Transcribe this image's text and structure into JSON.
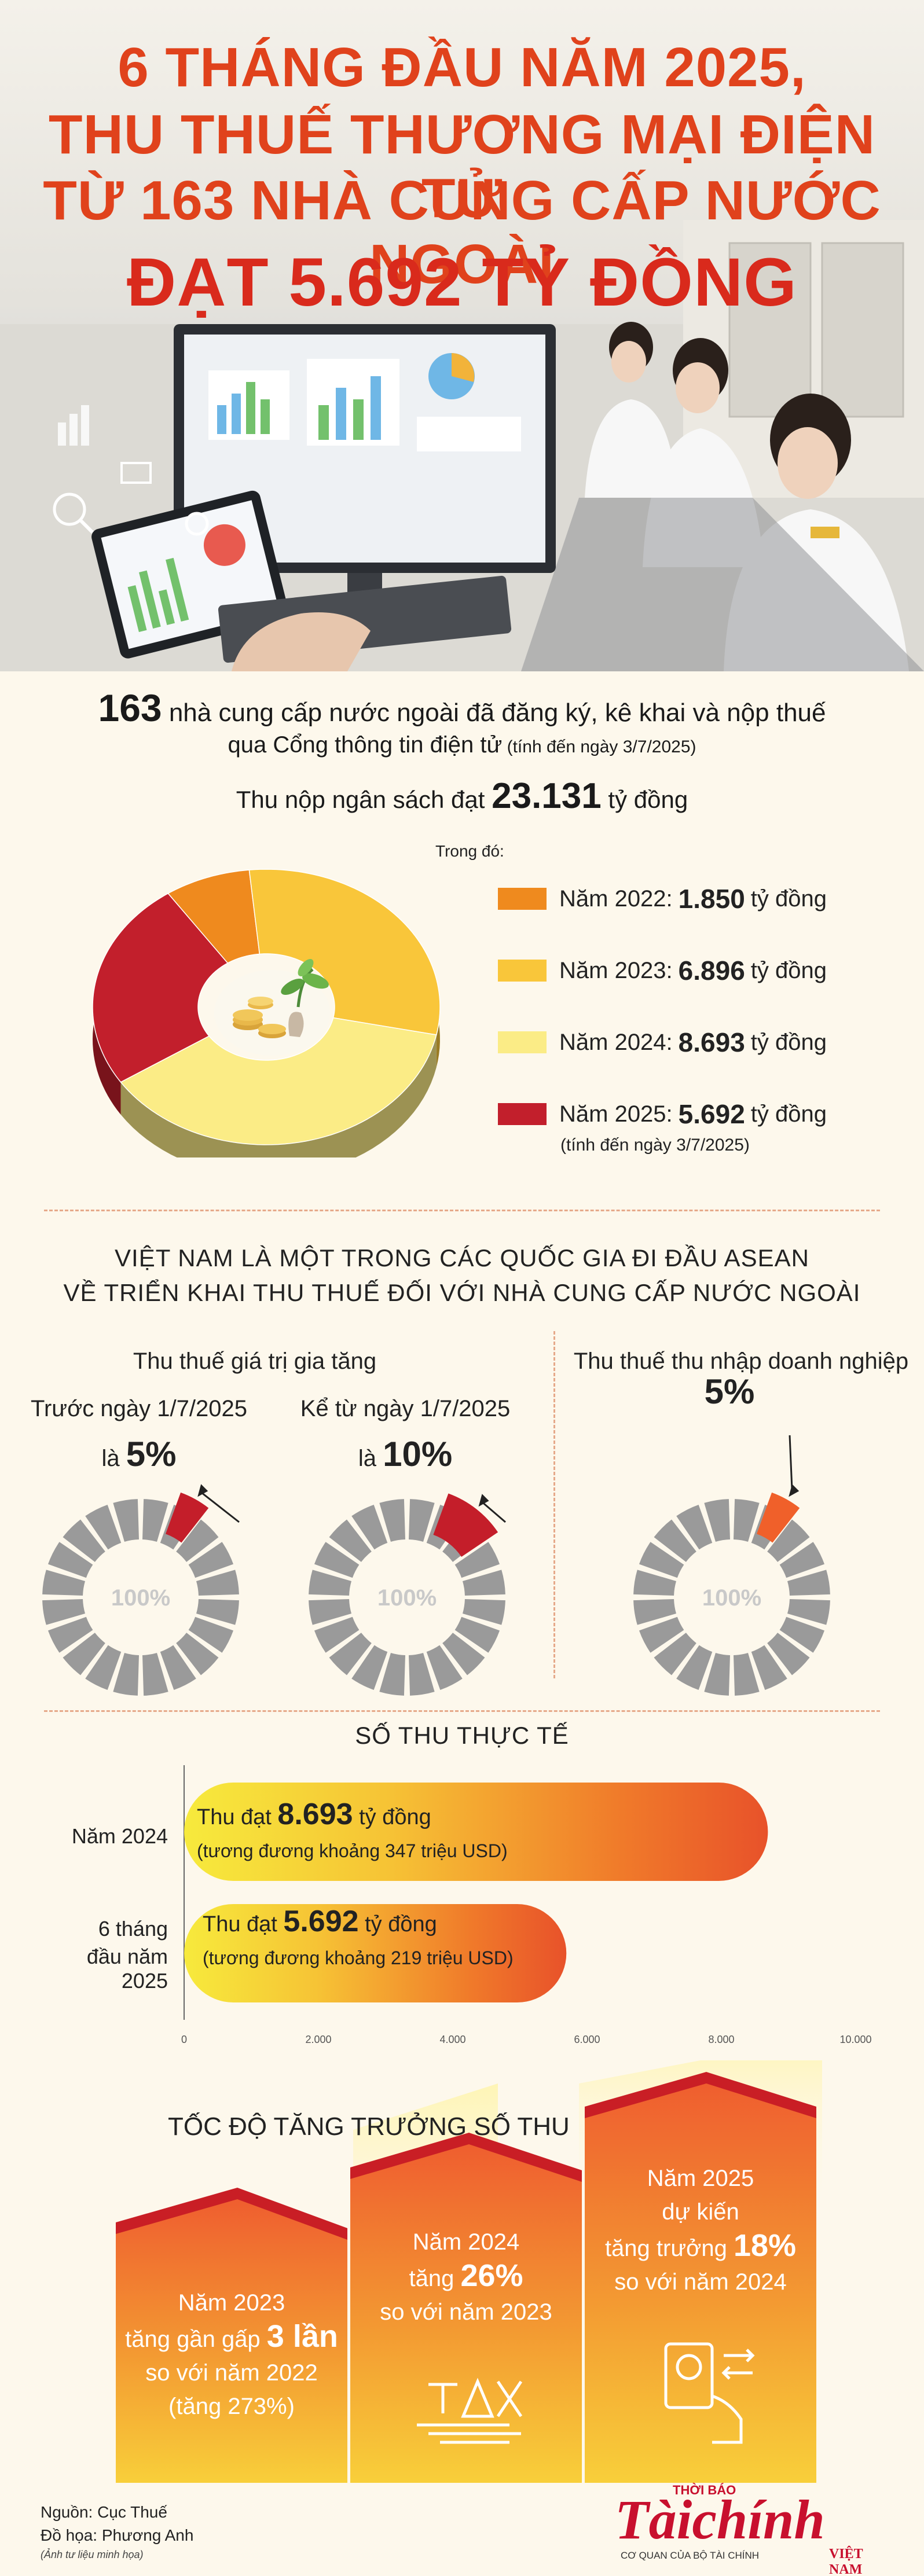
{
  "header": {
    "title_line1": "6 THÁNG ĐẦU NĂM 2025,",
    "title_line2": "THU THUẾ THƯƠNG MẠI ĐIỆN TỬ",
    "title_line3": "TỪ 163 NHÀ CUNG CẤP NƯỚC NGOÀI",
    "title_line4": "ĐẠT 5.692 TỶ ĐỒNG"
  },
  "intro": {
    "count": "163",
    "line1_rest": " nhà cung cấp nước ngoài đã đăng ký, kê khai và nộp thuế",
    "line2": "qua Cổng thông tin điện tử",
    "line2_note": " (tính đến ngày 3/7/2025)",
    "line3_pre": "Thu nộp ngân sách đạt ",
    "line3_value": "23.131",
    "line3_post": " tỷ đồng"
  },
  "revenue_legend": {
    "header": "Trong đó:",
    "unit": "tỷ đồng",
    "items": [
      {
        "label": "Năm 2022:",
        "value": "1.850",
        "color": "#ef8a1e"
      },
      {
        "label": "Năm 2023:",
        "value": "6.896",
        "color": "#f9c63a"
      },
      {
        "label": "Năm 2024:",
        "value": "8.693",
        "color": "#fbec86"
      },
      {
        "label": "Năm 2025:",
        "value": "5.692",
        "color": "#c21f2c"
      }
    ],
    "note": "(tính đến ngày 3/7/2025)"
  },
  "asean": {
    "title_line1": "VIỆT NAM LÀ MỘT TRONG CÁC QUỐC GIA ĐI ĐẦU ASEAN",
    "title_line2": "VỀ TRIỂN KHAI THU THUẾ ĐỐI VỚI NHÀ CUNG CẤP NƯỚC NGOÀI",
    "vat_title": "Thu thuế giá trị gia tăng",
    "cit_title": "Thu thuế thu nhập doanh nghiệp",
    "donuts": [
      {
        "label_line1": "Trước ngày 1/7/2025",
        "label_pre": "là ",
        "pct_label": "5%",
        "pct": 5,
        "center": "100%"
      },
      {
        "label_line1": "Kể từ ngày 1/7/2025",
        "label_pre": "là ",
        "pct_label": "10%",
        "pct": 10,
        "center": "100%"
      },
      {
        "label_line1": "",
        "label_pre": "",
        "pct_label": "5%",
        "pct": 5,
        "center": "100%"
      }
    ]
  },
  "actual": {
    "title": "SỐ THU THỰC TẾ",
    "bars": [
      {
        "cat": "Năm 2024",
        "text_pre": "Thu đạt ",
        "value_label": "8.693",
        "text_post": " tỷ đồng",
        "sub": "(tương đương khoảng 347 triệu USD)"
      },
      {
        "cat_line1": "6 tháng",
        "cat_line2": "đầu năm 2025",
        "text_pre": "Thu đạt ",
        "value_label": "5.692",
        "text_post": " tỷ đồng",
        "sub": "(tương đương khoảng 219 triệu USD)"
      }
    ],
    "ticks": [
      "0",
      "2.000",
      "4.000",
      "6.000",
      "8.000",
      "10.000"
    ]
  },
  "growth": {
    "title": "TỐC ĐỘ TĂNG TRƯỞNG SỐ THU",
    "cards": [
      {
        "l1": "Năm 2023",
        "l2_pre": "tăng gần gấp ",
        "l2_bold": "3 lần",
        "l3": "so với năm 2022",
        "l4": "(tăng 273%)"
      },
      {
        "l1": "Năm 2024",
        "l2_pre": "tăng ",
        "l2_bold": "26%",
        "l3": "so với năm 2023",
        "l4": ""
      },
      {
        "l1": "Năm 2025",
        "l2_pre": "dự kiến",
        "l2_bold": "",
        "l3_pre": "tăng trưởng ",
        "l3_bold": "18%",
        "l4": "so với năm 2024"
      }
    ],
    "tax_icon_text": "TAX"
  },
  "footer": {
    "source": "Nguồn: Cục Thuế",
    "graphic": "Đồ họa: Phương Anh",
    "note": "(Ảnh tư liệu minh họa)",
    "logo_top": "THỜI BÁO",
    "logo_main": "Tàichính",
    "logo_sub": "CƠ QUAN CỦA BỘ TÀI CHÍNH",
    "logo_country": "VIỆT NAM"
  },
  "chart_data": [
    {
      "type": "pie",
      "categories": [
        "Năm 2022",
        "Năm 2023",
        "Năm 2024",
        "Năm 2025"
      ],
      "values": [
        1850,
        6896,
        8693,
        5692
      ],
      "colors": [
        "#ef8a1e",
        "#f9c63a",
        "#fbec86",
        "#c21f2c"
      ]
    },
    {
      "type": "bar",
      "orientation": "horizontal",
      "categories": [
        "Năm 2024",
        "6 tháng đầu năm 2025"
      ],
      "values": [
        8693,
        5692
      ],
      "xlim": [
        0,
        10000
      ]
    }
  ]
}
